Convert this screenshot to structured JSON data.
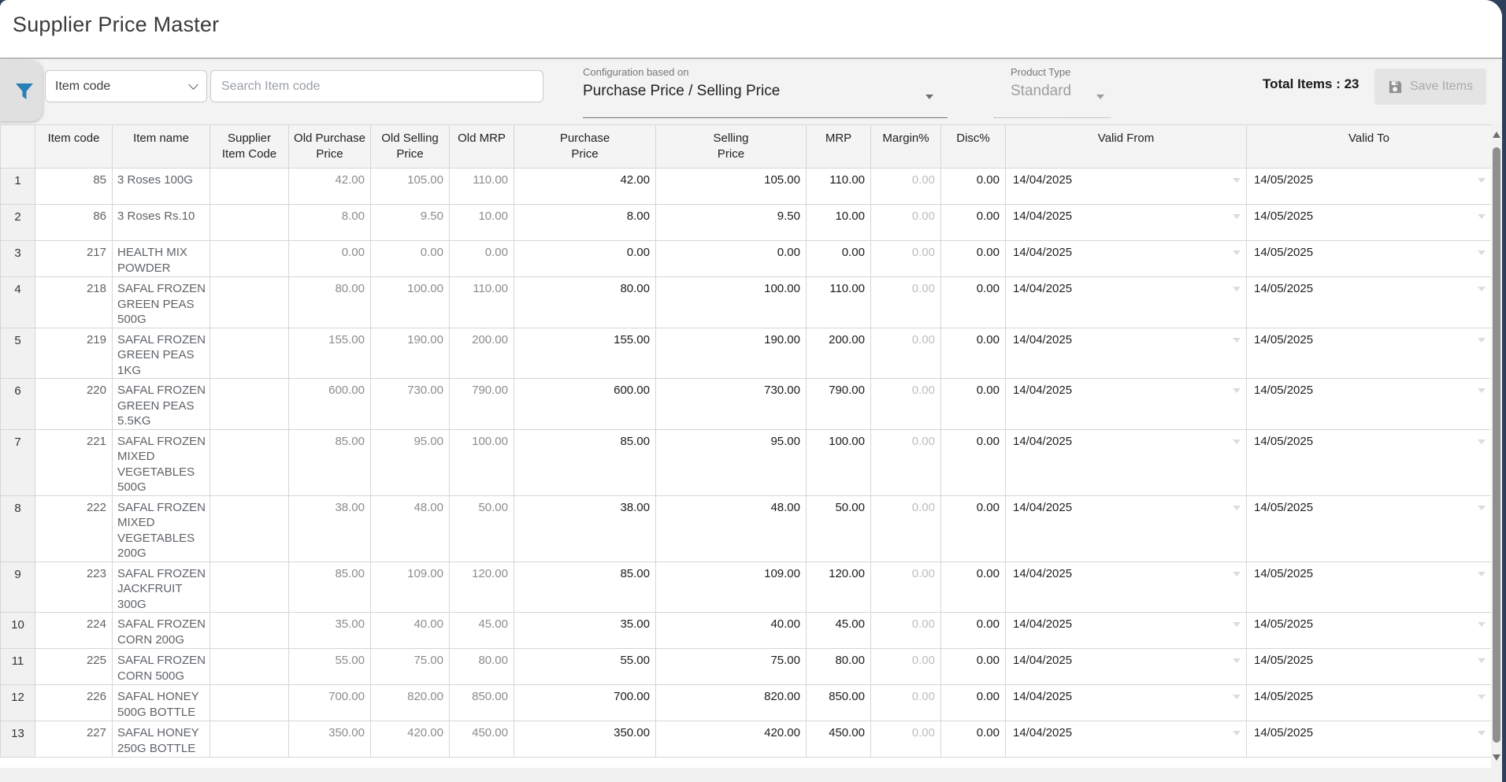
{
  "app": {
    "title": "Supplier Price Master"
  },
  "toolbar": {
    "filter_icon": "funnel-icon",
    "filter_color": "#2980b9",
    "field_selector": {
      "value": "Item code"
    },
    "search": {
      "placeholder": "Search Item code",
      "value": ""
    },
    "configuration": {
      "label": "Configuration based on",
      "value": "Purchase Price / Selling Price"
    },
    "product_type": {
      "label": "Product Type",
      "value": "Standard",
      "state": "disabled"
    },
    "total_items": "Total Items : 23",
    "save_button": {
      "label": "Save Items",
      "icon": "save-floppy-icon",
      "state": "disabled"
    }
  },
  "table": {
    "headers": {
      "sno": "",
      "item_code": "Item code",
      "item_name": "Item name",
      "supplier_item_code": "Supplier Item Code",
      "old_purchase": "Old Purchase Price",
      "old_selling": "Old Selling Price",
      "old_mrp": "Old MRP",
      "purchase": "Purchase Price",
      "selling": "Selling Price",
      "mrp": "MRP",
      "margin": "Margin%",
      "disc": "Disc%",
      "valid_from": "Valid From",
      "valid_to": "Valid To"
    },
    "rows": [
      {
        "sno": "1",
        "item_code": "85",
        "item_name": "3 Roses 100G",
        "supplier_item_code": "",
        "old_purchase": "42.00",
        "old_selling": "105.00",
        "old_mrp": "110.00",
        "purchase": "42.00",
        "selling": "105.00",
        "mrp": "110.00",
        "margin": "0.00",
        "disc": "0.00",
        "valid_from": "14/04/2025",
        "valid_to": "14/05/2025"
      },
      {
        "sno": "2",
        "item_code": "86",
        "item_name": "3 Roses Rs.10",
        "supplier_item_code": "",
        "old_purchase": "8.00",
        "old_selling": "9.50",
        "old_mrp": "10.00",
        "purchase": "8.00",
        "selling": "9.50",
        "mrp": "10.00",
        "margin": "0.00",
        "disc": "0.00",
        "valid_from": "14/04/2025",
        "valid_to": "14/05/2025"
      },
      {
        "sno": "3",
        "item_code": "217",
        "item_name": "HEALTH MIX POWDER",
        "supplier_item_code": "",
        "old_purchase": "0.00",
        "old_selling": "0.00",
        "old_mrp": "0.00",
        "purchase": "0.00",
        "selling": "0.00",
        "mrp": "0.00",
        "margin": "0.00",
        "disc": "0.00",
        "valid_from": "14/04/2025",
        "valid_to": "14/05/2025"
      },
      {
        "sno": "4",
        "item_code": "218",
        "item_name": "SAFAL FROZEN GREEN PEAS 500G",
        "supplier_item_code": "",
        "old_purchase": "80.00",
        "old_selling": "100.00",
        "old_mrp": "110.00",
        "purchase": "80.00",
        "selling": "100.00",
        "mrp": "110.00",
        "margin": "0.00",
        "disc": "0.00",
        "valid_from": "14/04/2025",
        "valid_to": "14/05/2025"
      },
      {
        "sno": "5",
        "item_code": "219",
        "item_name": "SAFAL FROZEN GREEN PEAS 1KG",
        "supplier_item_code": "",
        "old_purchase": "155.00",
        "old_selling": "190.00",
        "old_mrp": "200.00",
        "purchase": "155.00",
        "selling": "190.00",
        "mrp": "200.00",
        "margin": "0.00",
        "disc": "0.00",
        "valid_from": "14/04/2025",
        "valid_to": "14/05/2025"
      },
      {
        "sno": "6",
        "item_code": "220",
        "item_name": "SAFAL FROZEN GREEN PEAS 5.5KG",
        "supplier_item_code": "",
        "old_purchase": "600.00",
        "old_selling": "730.00",
        "old_mrp": "790.00",
        "purchase": "600.00",
        "selling": "730.00",
        "mrp": "790.00",
        "margin": "0.00",
        "disc": "0.00",
        "valid_from": "14/04/2025",
        "valid_to": "14/05/2025"
      },
      {
        "sno": "7",
        "item_code": "221",
        "item_name": "SAFAL FROZEN MIXED VEGETABLES 500G",
        "supplier_item_code": "",
        "old_purchase": "85.00",
        "old_selling": "95.00",
        "old_mrp": "100.00",
        "purchase": "85.00",
        "selling": "95.00",
        "mrp": "100.00",
        "margin": "0.00",
        "disc": "0.00",
        "valid_from": "14/04/2025",
        "valid_to": "14/05/2025"
      },
      {
        "sno": "8",
        "item_code": "222",
        "item_name": "SAFAL FROZEN MIXED VEGETABLES 200G",
        "supplier_item_code": "",
        "old_purchase": "38.00",
        "old_selling": "48.00",
        "old_mrp": "50.00",
        "purchase": "38.00",
        "selling": "48.00",
        "mrp": "50.00",
        "margin": "0.00",
        "disc": "0.00",
        "valid_from": "14/04/2025",
        "valid_to": "14/05/2025"
      },
      {
        "sno": "9",
        "item_code": "223",
        "item_name": "SAFAL FROZEN JACKFRUIT 300G",
        "supplier_item_code": "",
        "old_purchase": "85.00",
        "old_selling": "109.00",
        "old_mrp": "120.00",
        "purchase": "85.00",
        "selling": "109.00",
        "mrp": "120.00",
        "margin": "0.00",
        "disc": "0.00",
        "valid_from": "14/04/2025",
        "valid_to": "14/05/2025"
      },
      {
        "sno": "10",
        "item_code": "224",
        "item_name": "SAFAL FROZEN CORN 200G",
        "supplier_item_code": "",
        "old_purchase": "35.00",
        "old_selling": "40.00",
        "old_mrp": "45.00",
        "purchase": "35.00",
        "selling": "40.00",
        "mrp": "45.00",
        "margin": "0.00",
        "disc": "0.00",
        "valid_from": "14/04/2025",
        "valid_to": "14/05/2025"
      },
      {
        "sno": "11",
        "item_code": "225",
        "item_name": "SAFAL FROZEN CORN 500G",
        "supplier_item_code": "",
        "old_purchase": "55.00",
        "old_selling": "75.00",
        "old_mrp": "80.00",
        "purchase": "55.00",
        "selling": "75.00",
        "mrp": "80.00",
        "margin": "0.00",
        "disc": "0.00",
        "valid_from": "14/04/2025",
        "valid_to": "14/05/2025"
      },
      {
        "sno": "12",
        "item_code": "226",
        "item_name": "SAFAL HONEY 500G BOTTLE",
        "supplier_item_code": "",
        "old_purchase": "700.00",
        "old_selling": "820.00",
        "old_mrp": "850.00",
        "purchase": "700.00",
        "selling": "820.00",
        "mrp": "850.00",
        "margin": "0.00",
        "disc": "0.00",
        "valid_from": "14/04/2025",
        "valid_to": "14/05/2025"
      },
      {
        "sno": "13",
        "item_code": "227",
        "item_name": "SAFAL HONEY 250G BOTTLE",
        "supplier_item_code": "",
        "old_purchase": "350.00",
        "old_selling": "420.00",
        "old_mrp": "450.00",
        "purchase": "350.00",
        "selling": "420.00",
        "mrp": "450.00",
        "margin": "0.00",
        "disc": "0.00",
        "valid_from": "14/04/2025",
        "valid_to": "14/05/2025"
      }
    ]
  },
  "colors": {
    "window_edge": "#2e3f5a",
    "toolbar_bg": "#f3f3f3",
    "header_bg": "#f4f4f4",
    "grid_border": "#d6d6d6",
    "accent_filter": "#2980b9",
    "old_value_text": "#8c8c8c",
    "editable_value_text": "#1c1c1c",
    "muted_value_text": "#bdbdbd"
  }
}
